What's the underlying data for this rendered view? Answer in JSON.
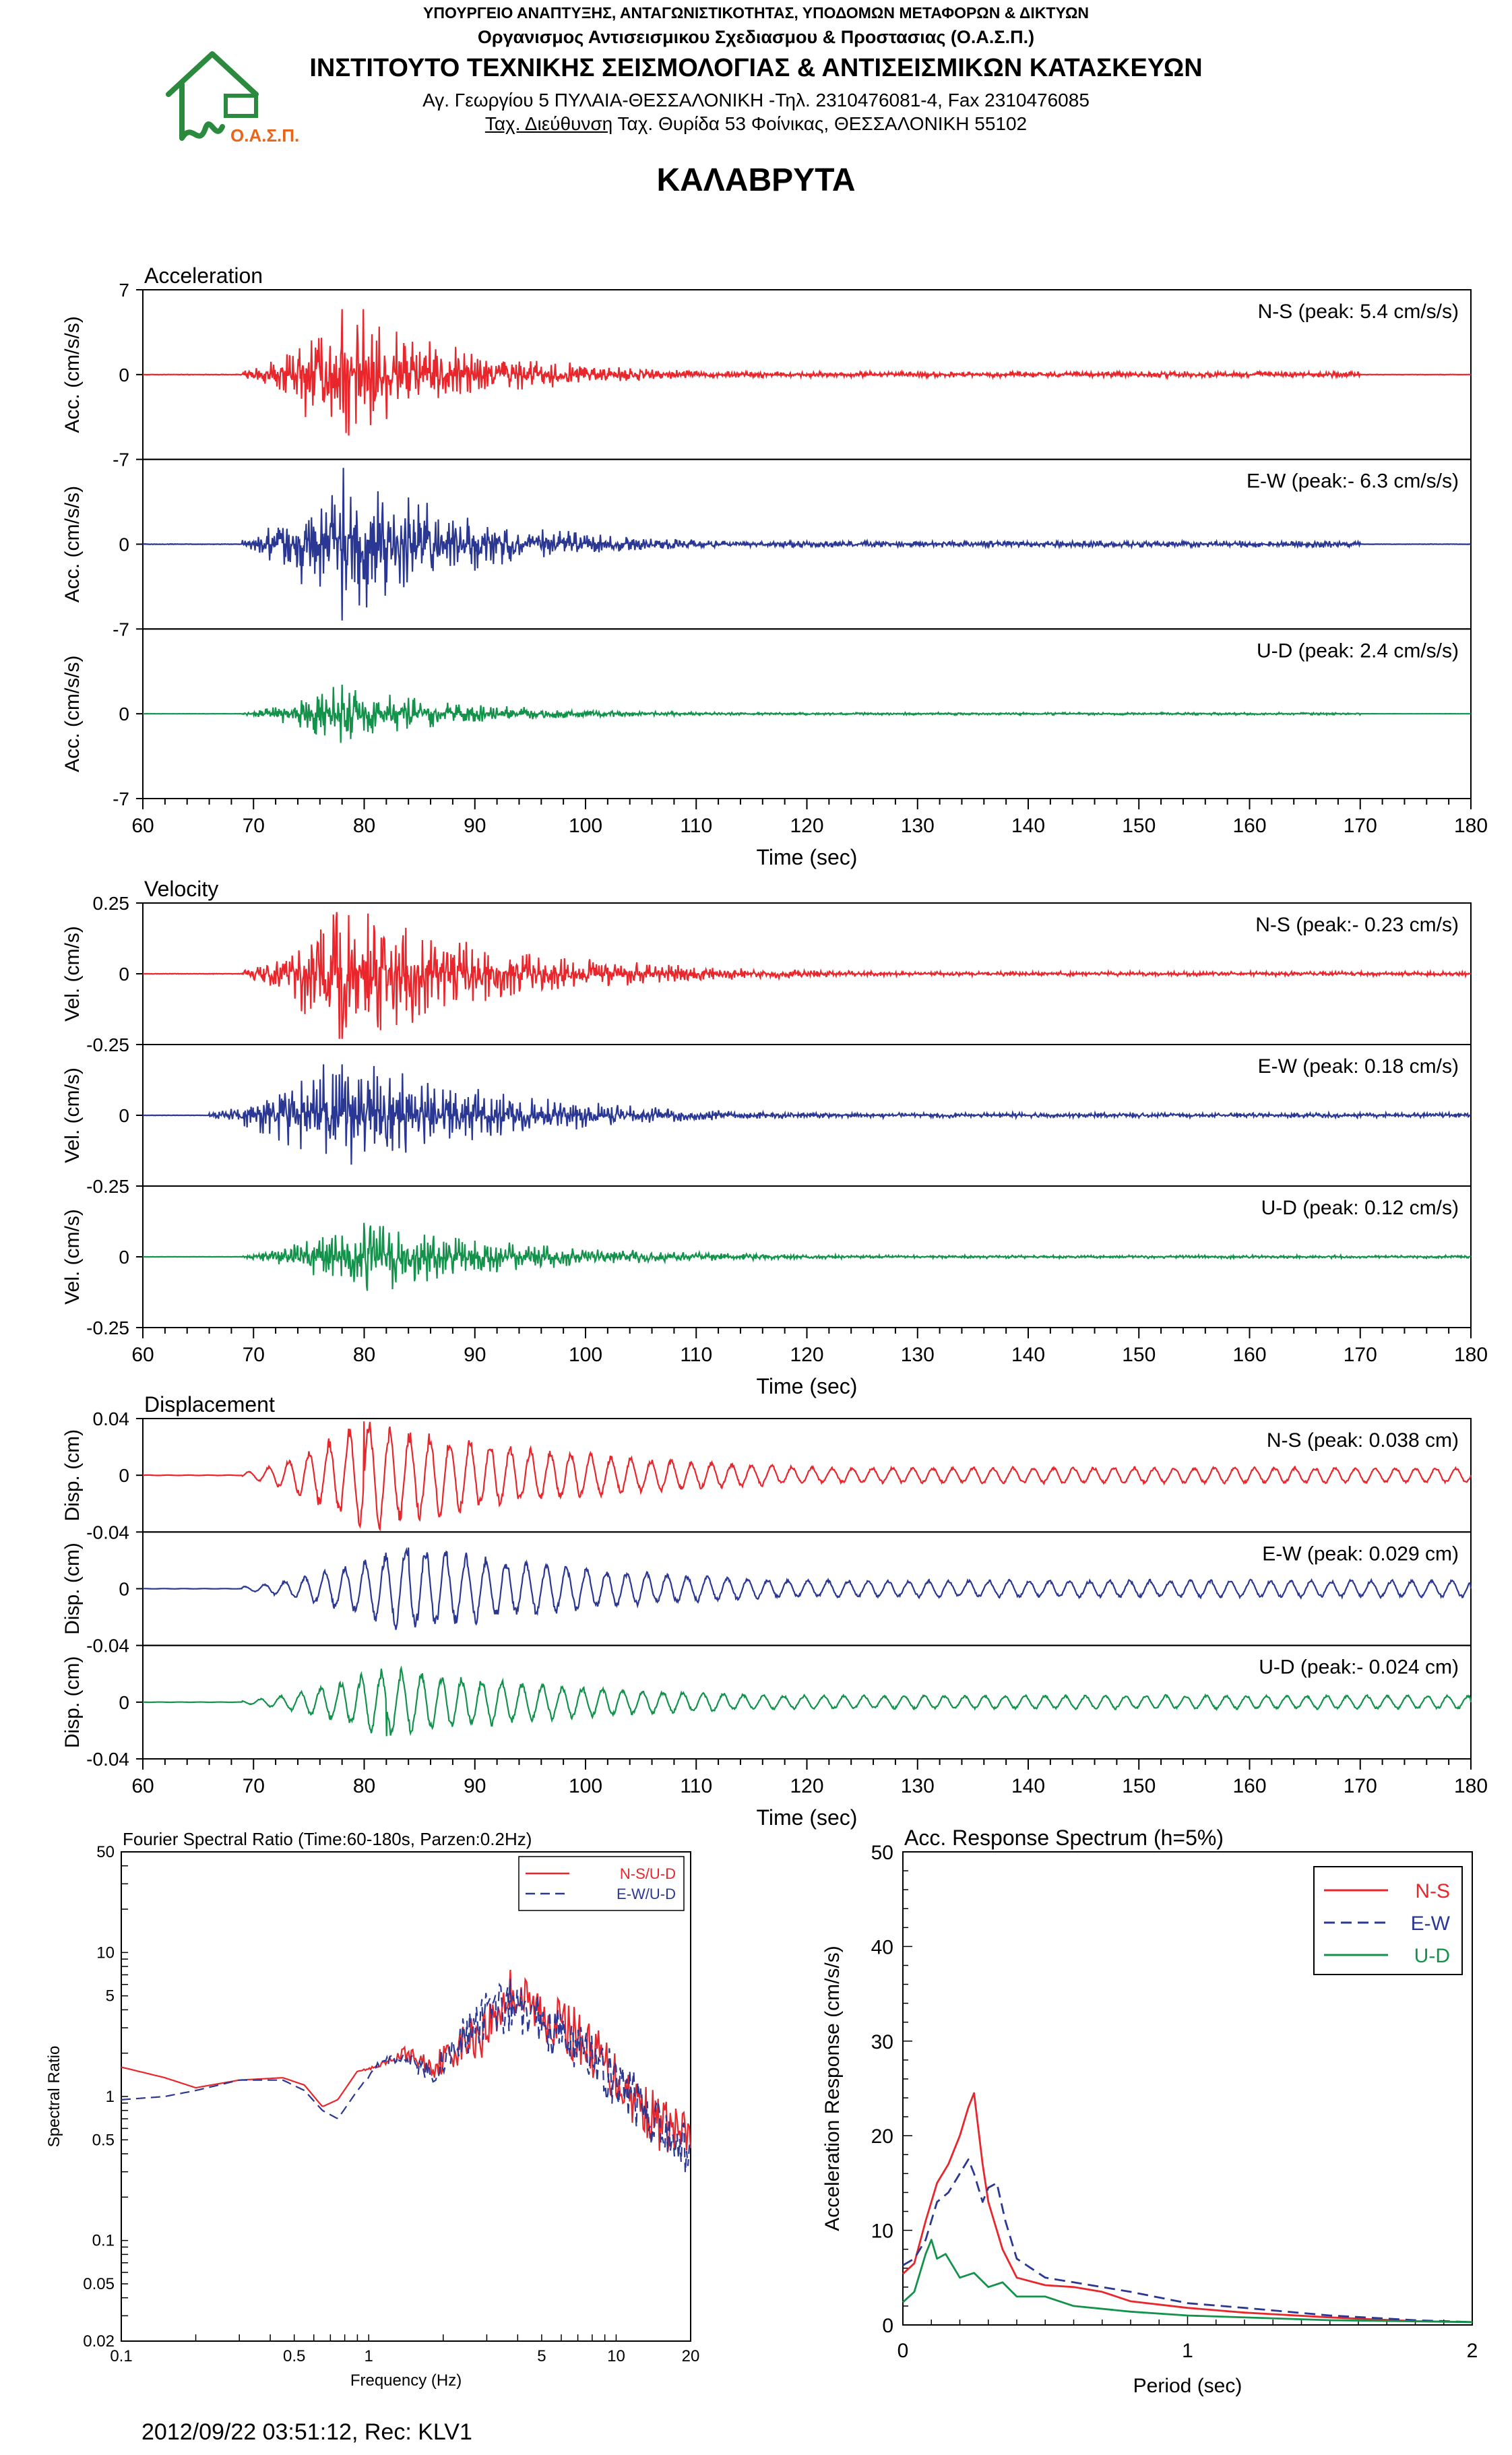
{
  "header": {
    "ministry": "ΥΠΟΥΡΓΕΙΟ ΑΝΑΠΤΥΞΗΣ, ΑΝΤΑΓΩΝΙΣΤΙΚΟΤΗΤΑΣ, ΥΠΟΔΟΜΩΝ ΜΕΤΑΦΟΡΩΝ & ΔΙΚΤΥΩΝ",
    "organization": "Οργανισμος Αντισεισμικου Σχεδιασμου & Προστασιας (Ο.Α.Σ.Π.)",
    "institute": "ΙΝΣΤΙΤΟΥΤΟ ΤΕΧΝΙΚΗΣ ΣΕΙΣΜΟΛΟΓΙΑΣ & ΑΝΤΙΣΕΙΣΜΙΚΩΝ ΚΑΤΑΣΚΕΥΩΝ",
    "address": "Αγ. Γεωργίου 5 ΠΥΛΑΙΑ-ΘΕΣΣΑΛΟΝΙΚΗ -Τηλ. 2310476081-4,  Fax 2310476085",
    "postal_label": "Ταχ. Διεύθυνση",
    "postal": " Ταχ. Θυρίδα 53 Φοίνικας, ΘΕΣΣΑΛΟΝΙΚΗ 55102",
    "logo_text": "Ο.Α.Σ.Π."
  },
  "station_name": "ΚΑΛΑΒΡΥΤΑ",
  "footer": "2012/09/22 03:51:12, Rec: KLV1",
  "colors": {
    "ns": "#e8262b",
    "ew": "#2b3893",
    "ud": "#12924a",
    "logo": "#2b8a3e",
    "logo_text": "#e8651a"
  },
  "chart_data": [
    {
      "type": "line",
      "title": "Acceleration",
      "xlabel": "Time (sec)",
      "ylabel": "Acc. (cm/s/s)",
      "xlim": [
        60,
        180
      ],
      "ylim": [
        -7,
        7
      ],
      "yticks": [
        "7",
        "0",
        "-7"
      ],
      "xticks": [
        "60",
        "70",
        "80",
        "90",
        "100",
        "110",
        "120",
        "130",
        "140",
        "150",
        "160",
        "170",
        "180"
      ],
      "series": [
        {
          "name": "N-S",
          "label": "N-S (peak: 5.4 cm/s/s)",
          "peak": 5.4,
          "color": "#e8262b",
          "start": 69,
          "peak_time": 78,
          "end": 170,
          "noise": 0.04
        },
        {
          "name": "E-W",
          "label": "E-W (peak:- 6.3 cm/s/s)",
          "peak": -6.3,
          "color": "#2b3893",
          "start": 69,
          "peak_time": 78,
          "end": 170,
          "noise": 0.04
        },
        {
          "name": "U-D",
          "label": "U-D (peak: 2.4 cm/s/s)",
          "peak": 2.4,
          "color": "#12924a",
          "start": 69,
          "peak_time": 78,
          "end": 170,
          "noise": 0.04
        }
      ]
    },
    {
      "type": "line",
      "title": "Velocity",
      "xlabel": "Time (sec)",
      "ylabel": "Vel. (cm/s)",
      "xlim": [
        60,
        180
      ],
      "ylim": [
        -0.25,
        0.25
      ],
      "yticks": [
        "0.25",
        "0",
        "-0.25"
      ],
      "xticks": [
        "60",
        "70",
        "80",
        "90",
        "100",
        "110",
        "120",
        "130",
        "140",
        "150",
        "160",
        "170",
        "180"
      ],
      "series": [
        {
          "name": "N-S",
          "label": "N-S (peak:- 0.23 cm/s)",
          "peak": -0.23,
          "color": "#e8262b",
          "start": 69,
          "peak_time": 78,
          "end": 180,
          "noise": 0.03
        },
        {
          "name": "E-W",
          "label": "E-W (peak: 0.18 cm/s)",
          "peak": 0.18,
          "color": "#2b3893",
          "start": 66,
          "peak_time": 78,
          "end": 180,
          "noise": 0.04
        },
        {
          "name": "U-D",
          "label": "U-D (peak: 0.12 cm/s)",
          "peak": 0.12,
          "color": "#12924a",
          "start": 69,
          "peak_time": 80,
          "end": 180,
          "noise": 0.04
        }
      ]
    },
    {
      "type": "line",
      "title": "Displacement",
      "xlabel": "Time (sec)",
      "ylabel": "Disp. (cm)",
      "xlim": [
        60,
        180
      ],
      "ylim": [
        -0.04,
        0.04
      ],
      "yticks": [
        "0.04",
        "0",
        "-0.04"
      ],
      "xticks": [
        "60",
        "70",
        "80",
        "90",
        "100",
        "110",
        "120",
        "130",
        "140",
        "150",
        "160",
        "170",
        "180"
      ],
      "series": [
        {
          "name": "N-S",
          "label": "N-S (peak: 0.038 cm)",
          "peak": 0.038,
          "color": "#e8262b",
          "start": 69,
          "peak_time": 80,
          "end": 180,
          "noise": 0.15
        },
        {
          "name": "E-W",
          "label": "E-W (peak: 0.029 cm)",
          "peak": 0.029,
          "color": "#2b3893",
          "start": 69,
          "peak_time": 84,
          "end": 180,
          "noise": 0.2
        },
        {
          "name": "U-D",
          "label": "U-D (peak:- 0.024 cm)",
          "peak": -0.024,
          "color": "#12924a",
          "start": 69,
          "peak_time": 82,
          "end": 180,
          "noise": 0.2
        }
      ]
    },
    {
      "type": "line",
      "title": "Fourier Spectral Ratio (Time:60-180s, Parzen:0.2Hz)",
      "xlabel": "Frequency (Hz)",
      "ylabel": "Spectral Ratio",
      "xscale": "log",
      "yscale": "log",
      "xlim": [
        0.1,
        20
      ],
      "ylim": [
        0.02,
        50
      ],
      "xticks": [
        [
          "0.1",
          0.1
        ],
        [
          "0.5",
          0.5
        ],
        [
          "1",
          1
        ],
        [
          "5",
          5
        ],
        [
          "10",
          10
        ],
        [
          "20",
          20
        ]
      ],
      "yticks": [
        [
          "50",
          50
        ],
        [
          "10",
          10
        ],
        [
          "5",
          5
        ],
        [
          "1",
          1
        ],
        [
          "0.5",
          0.5
        ],
        [
          "0.1",
          0.1
        ],
        [
          "0.05",
          0.05
        ],
        [
          "0.02",
          0.02
        ]
      ],
      "legend": "top-right",
      "series": [
        {
          "name": "N-S/U-D",
          "color": "#e8262b",
          "dash": "",
          "x": [
            0.1,
            0.15,
            0.2,
            0.3,
            0.45,
            0.55,
            0.65,
            0.75,
            0.9,
            1.1,
            1.4,
            1.8,
            2.3,
            3.0,
            3.8,
            4.5,
            5.5,
            7,
            9,
            12,
            15,
            20
          ],
          "y": [
            1.6,
            1.35,
            1.15,
            1.3,
            1.35,
            1.2,
            0.85,
            0.95,
            1.5,
            1.6,
            2.0,
            1.6,
            2.2,
            3.0,
            5.5,
            4.2,
            3.5,
            2.6,
            1.7,
            0.95,
            0.65,
            0.5
          ],
          "jitter": 0.55
        },
        {
          "name": "E-W/U-D",
          "color": "#2b3893",
          "dash": "14,8",
          "x": [
            0.1,
            0.15,
            0.2,
            0.3,
            0.45,
            0.55,
            0.65,
            0.75,
            0.9,
            1.1,
            1.4,
            1.8,
            2.3,
            3.0,
            3.8,
            4.5,
            5.5,
            7,
            9,
            12,
            15,
            20
          ],
          "y": [
            0.95,
            1.0,
            1.1,
            1.3,
            1.3,
            1.1,
            0.8,
            0.7,
            1.1,
            1.7,
            1.9,
            1.4,
            2.4,
            3.4,
            4.6,
            3.4,
            2.8,
            2.2,
            1.5,
            0.95,
            0.6,
            0.4
          ],
          "jitter": 0.55
        }
      ]
    },
    {
      "type": "line",
      "title": "Acc. Response Spectrum (h=5%)",
      "xlabel": "Period (sec)",
      "ylabel": "Acceleration Response (cm/s/s)",
      "xlim": [
        0,
        2
      ],
      "ylim": [
        0,
        50
      ],
      "xticks": [
        [
          "0",
          0
        ],
        [
          "1",
          1
        ],
        [
          "2",
          2
        ]
      ],
      "yticks": [
        [
          "0",
          0
        ],
        [
          "10",
          10
        ],
        [
          "20",
          20
        ],
        [
          "30",
          30
        ],
        [
          "40",
          40
        ],
        [
          "50",
          50
        ]
      ],
      "legend": "top-right",
      "series": [
        {
          "name": "N-S",
          "color": "#e8262b",
          "dash": "",
          "x": [
            0.0,
            0.04,
            0.08,
            0.12,
            0.16,
            0.2,
            0.23,
            0.25,
            0.28,
            0.3,
            0.35,
            0.4,
            0.5,
            0.6,
            0.7,
            0.8,
            1.0,
            1.2,
            1.5,
            1.8,
            2.0
          ],
          "y": [
            5.4,
            6.5,
            11,
            15,
            17,
            20,
            23,
            24.5,
            17,
            13,
            8,
            5,
            4.2,
            4.0,
            3.5,
            2.5,
            1.8,
            1.3,
            0.8,
            0.4,
            0.3
          ]
        },
        {
          "name": "E-W",
          "color": "#2b3893",
          "dash": "16,9",
          "x": [
            0.0,
            0.04,
            0.08,
            0.12,
            0.16,
            0.2,
            0.23,
            0.25,
            0.28,
            0.3,
            0.33,
            0.36,
            0.4,
            0.5,
            0.6,
            0.8,
            1.0,
            1.2,
            1.5,
            1.8,
            2.0
          ],
          "y": [
            6.3,
            7,
            9,
            13,
            14,
            16,
            17.5,
            16,
            13,
            14.5,
            15,
            11,
            7,
            5,
            4.5,
            3.5,
            2.3,
            1.8,
            1.0,
            0.5,
            0.3
          ]
        },
        {
          "name": "U-D",
          "color": "#12924a",
          "dash": "",
          "x": [
            0.0,
            0.04,
            0.08,
            0.1,
            0.12,
            0.15,
            0.2,
            0.25,
            0.3,
            0.35,
            0.4,
            0.5,
            0.6,
            0.8,
            1.0,
            1.5,
            2.0
          ],
          "y": [
            2.4,
            3.5,
            7.5,
            9,
            7,
            7.5,
            5,
            5.5,
            4,
            4.5,
            3,
            3,
            2,
            1.4,
            1.0,
            0.5,
            0.3
          ]
        }
      ]
    }
  ]
}
